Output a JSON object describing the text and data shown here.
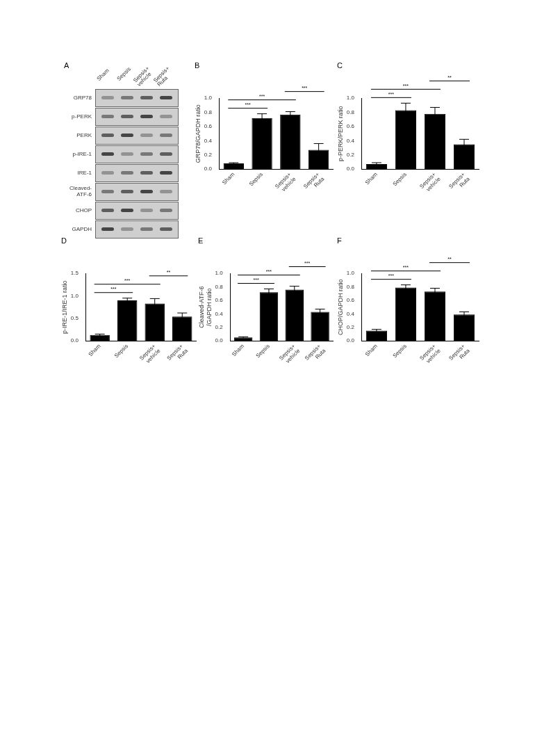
{
  "chart_data": [
    {
      "type": "other",
      "title": "A",
      "categories": [
        "Sham",
        "Sepsis",
        "Sepsis+ vehicle",
        "Sepsis+ Ruta"
      ],
      "annotations": [
        "GRP78",
        "p-PERK",
        "PERK",
        "p-IRE-1",
        "IRE-1",
        "Cleaved-ATF-6",
        "CHOP",
        "GAPDH"
      ]
    },
    {
      "type": "bar",
      "title": "B",
      "ylabel": "GRP78/GAPDH ratio",
      "categories": [
        "Sham",
        "Sepsis",
        "Sepsis+ vehicle",
        "Sepsis+ Ruta"
      ],
      "values": [
        0.08,
        0.72,
        0.77,
        0.27
      ],
      "errors": [
        0.01,
        0.06,
        0.04,
        0.09
      ],
      "color": "#000000",
      "ylim": [
        0,
        1
      ],
      "yticks": [
        {
          "value": 0,
          "label": "0.0"
        },
        {
          "value": 0.2,
          "label": "0.2"
        },
        {
          "value": 0.4,
          "label": "0.4"
        },
        {
          "value": 0.6,
          "label": "0.6"
        },
        {
          "value": 0.8,
          "label": "0.8"
        },
        {
          "value": 1,
          "label": "1.0"
        }
      ],
      "annotations": [
        "***",
        "***",
        "***"
      ]
    },
    {
      "type": "bar",
      "title": "C",
      "ylabel": "p-PERK/PERK ratio",
      "categories": [
        "Sham",
        "Sepsis",
        "Sepsis+ vehicle",
        "Sepsis+ Ruta"
      ],
      "values": [
        0.07,
        0.83,
        0.78,
        0.35
      ],
      "errors": [
        0.02,
        0.1,
        0.09,
        0.07
      ],
      "color": "#000000",
      "ylim": [
        0,
        1
      ],
      "yticks": [
        {
          "value": 0,
          "label": "0.0"
        },
        {
          "value": 0.2,
          "label": "0.2"
        },
        {
          "value": 0.4,
          "label": "0.4"
        },
        {
          "value": 0.6,
          "label": "0.6"
        },
        {
          "value": 0.8,
          "label": "0.8"
        },
        {
          "value": 1,
          "label": "1.0"
        }
      ],
      "annotations": [
        "***",
        "***",
        "**"
      ]
    },
    {
      "type": "bar",
      "title": "D",
      "ylabel": "p-IRE-1/IRE-1 ratio",
      "categories": [
        "Sham",
        "Sepsis",
        "Sepsis+ vehicle",
        "Sepsis+ Ruta"
      ],
      "values": [
        0.13,
        0.9,
        0.83,
        0.54
      ],
      "errors": [
        0.02,
        0.05,
        0.11,
        0.08
      ],
      "color": "#000000",
      "ylim": [
        0,
        1.5
      ],
      "yticks": [
        {
          "value": 0,
          "label": "0.0"
        },
        {
          "value": 0.5,
          "label": "0.5"
        },
        {
          "value": 1,
          "label": "1.0"
        },
        {
          "value": 1.5,
          "label": "1.5"
        }
      ],
      "annotations": [
        "***",
        "***",
        "**"
      ]
    },
    {
      "type": "bar",
      "title": "E",
      "ylabel": "Cleaved-ATF-6 /GAPDH ratio",
      "categories": [
        "Sham",
        "Sepsis",
        "Sepsis+ vehicle",
        "Sepsis+ Ruta"
      ],
      "values": [
        0.05,
        0.72,
        0.76,
        0.43
      ],
      "errors": [
        0.01,
        0.05,
        0.05,
        0.04
      ],
      "color": "#000000",
      "ylim": [
        0,
        1
      ],
      "yticks": [
        {
          "value": 0,
          "label": "0.0"
        },
        {
          "value": 0.2,
          "label": "0.2"
        },
        {
          "value": 0.4,
          "label": "0.4"
        },
        {
          "value": 0.6,
          "label": "0.6"
        },
        {
          "value": 0.8,
          "label": "0.8"
        },
        {
          "value": 1,
          "label": "1.0"
        }
      ],
      "annotations": [
        "***",
        "***",
        "***"
      ]
    },
    {
      "type": "bar",
      "title": "F",
      "ylabel": "CHOP/GAPDH ratio",
      "categories": [
        "Sham",
        "Sepsis",
        "Sepsis+ vehicle",
        "Sepsis+ Ruta"
      ],
      "values": [
        0.15,
        0.79,
        0.73,
        0.39
      ],
      "errors": [
        0.02,
        0.04,
        0.05,
        0.04
      ],
      "color": "#000000",
      "ylim": [
        0,
        1
      ],
      "yticks": [
        {
          "value": 0,
          "label": "0.0"
        },
        {
          "value": 0.2,
          "label": "0.2"
        },
        {
          "value": 0.4,
          "label": "0.4"
        },
        {
          "value": 0.6,
          "label": "0.6"
        },
        {
          "value": 0.8,
          "label": "0.8"
        },
        {
          "value": 1,
          "label": "1.0"
        }
      ],
      "annotations": [
        "***",
        "***",
        "**"
      ]
    }
  ]
}
